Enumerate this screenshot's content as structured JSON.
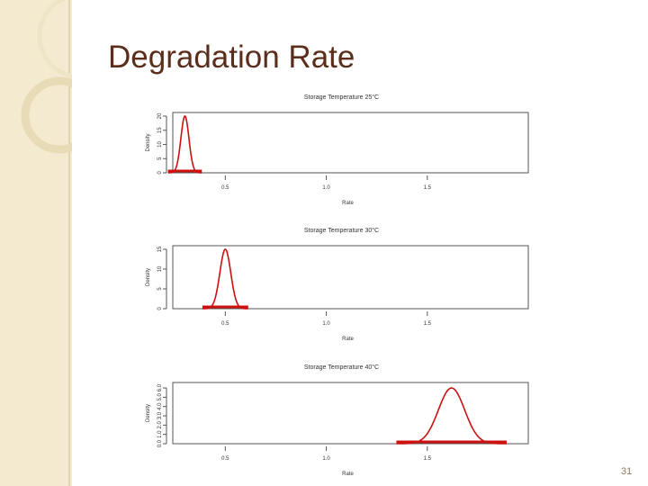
{
  "slide": {
    "title": "Degradation Rate",
    "page_number": "31"
  },
  "colors": {
    "title": "#5a2e1b",
    "curve": "#cc1111",
    "sidebar": "#f3ead0"
  },
  "chart_data": [
    {
      "type": "line",
      "title": "Storage Temperature 25°C",
      "xlabel": "Rate",
      "ylabel": "Density",
      "x_ticks": [
        "0.5",
        "1.0",
        "1.5"
      ],
      "y_ticks": [
        "0",
        "5",
        "10",
        "15",
        "20"
      ],
      "xlim": [
        0.24,
        2.0
      ],
      "ylim": [
        0,
        20
      ],
      "series": [
        {
          "peak_x": 0.3,
          "sd": 0.02,
          "peak_y": 20
        }
      ]
    },
    {
      "type": "line",
      "title": "Storage Temperature 30°C",
      "xlabel": "Rate",
      "ylabel": "Density",
      "x_ticks": [
        "0.5",
        "1.0",
        "1.5"
      ],
      "y_ticks": [
        "0",
        "5",
        "10",
        "15"
      ],
      "xlim": [
        0.24,
        2.0
      ],
      "ylim": [
        0,
        15
      ],
      "series": [
        {
          "peak_x": 0.5,
          "sd": 0.027,
          "peak_y": 15
        }
      ]
    },
    {
      "type": "line",
      "title": "Storage Temperature 40°C",
      "xlabel": "Rate",
      "ylabel": "Density",
      "x_ticks": [
        "0.5",
        "1.0",
        "1.5"
      ],
      "y_ticks": [
        "0.0",
        "1.0",
        "2.0",
        "3.0",
        "4.0",
        "5.0",
        "6.0"
      ],
      "xlim": [
        0.24,
        2.0
      ],
      "ylim": [
        0,
        6.2
      ],
      "series": [
        {
          "peak_x": 1.62,
          "sd": 0.065,
          "peak_y": 6.0
        }
      ]
    }
  ]
}
